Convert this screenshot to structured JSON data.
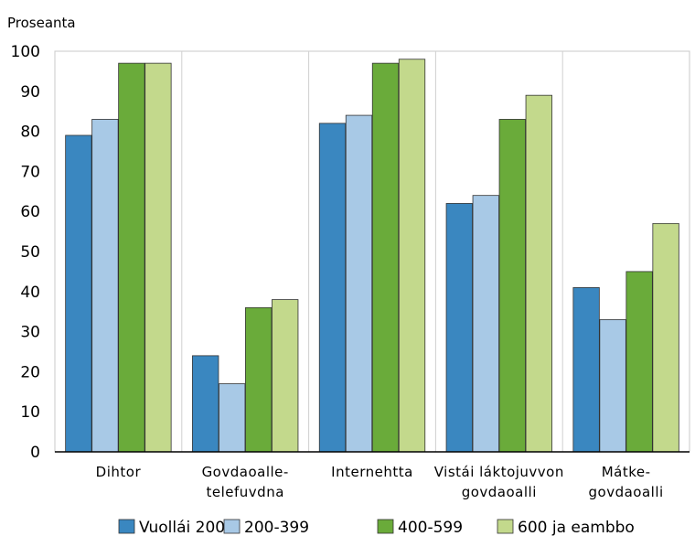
{
  "chart_data": {
    "type": "bar",
    "ylabel": "Proseanta",
    "ylim": [
      0,
      100
    ],
    "yticks": [
      "0",
      "10",
      "20",
      "30",
      "40",
      "50",
      "60",
      "70",
      "80",
      "90",
      "100"
    ],
    "grid": "vertical separators between categories",
    "legend_position": "bottom",
    "categories": [
      [
        "Dihtor"
      ],
      [
        "Govdaoalle-",
        "telefuvdna"
      ],
      [
        "Internehtta"
      ],
      [
        "Vistái láktojuvvon",
        "govdaoalli"
      ],
      [
        "Mátke-",
        "govdaoalli"
      ]
    ],
    "series": [
      {
        "name": "Vuollái 200",
        "color": "#3a87c0",
        "values": [
          79,
          24,
          82,
          62,
          41
        ]
      },
      {
        "name": "200-399",
        "color": "#a8c9e6",
        "values": [
          83,
          17,
          84,
          64,
          33
        ]
      },
      {
        "name": "400-599",
        "color": "#6aab3a",
        "values": [
          97,
          36,
          97,
          83,
          45
        ]
      },
      {
        "name": "600 ja eambbo",
        "color": "#c3d98c",
        "values": [
          97,
          38,
          98,
          89,
          57
        ]
      }
    ]
  }
}
